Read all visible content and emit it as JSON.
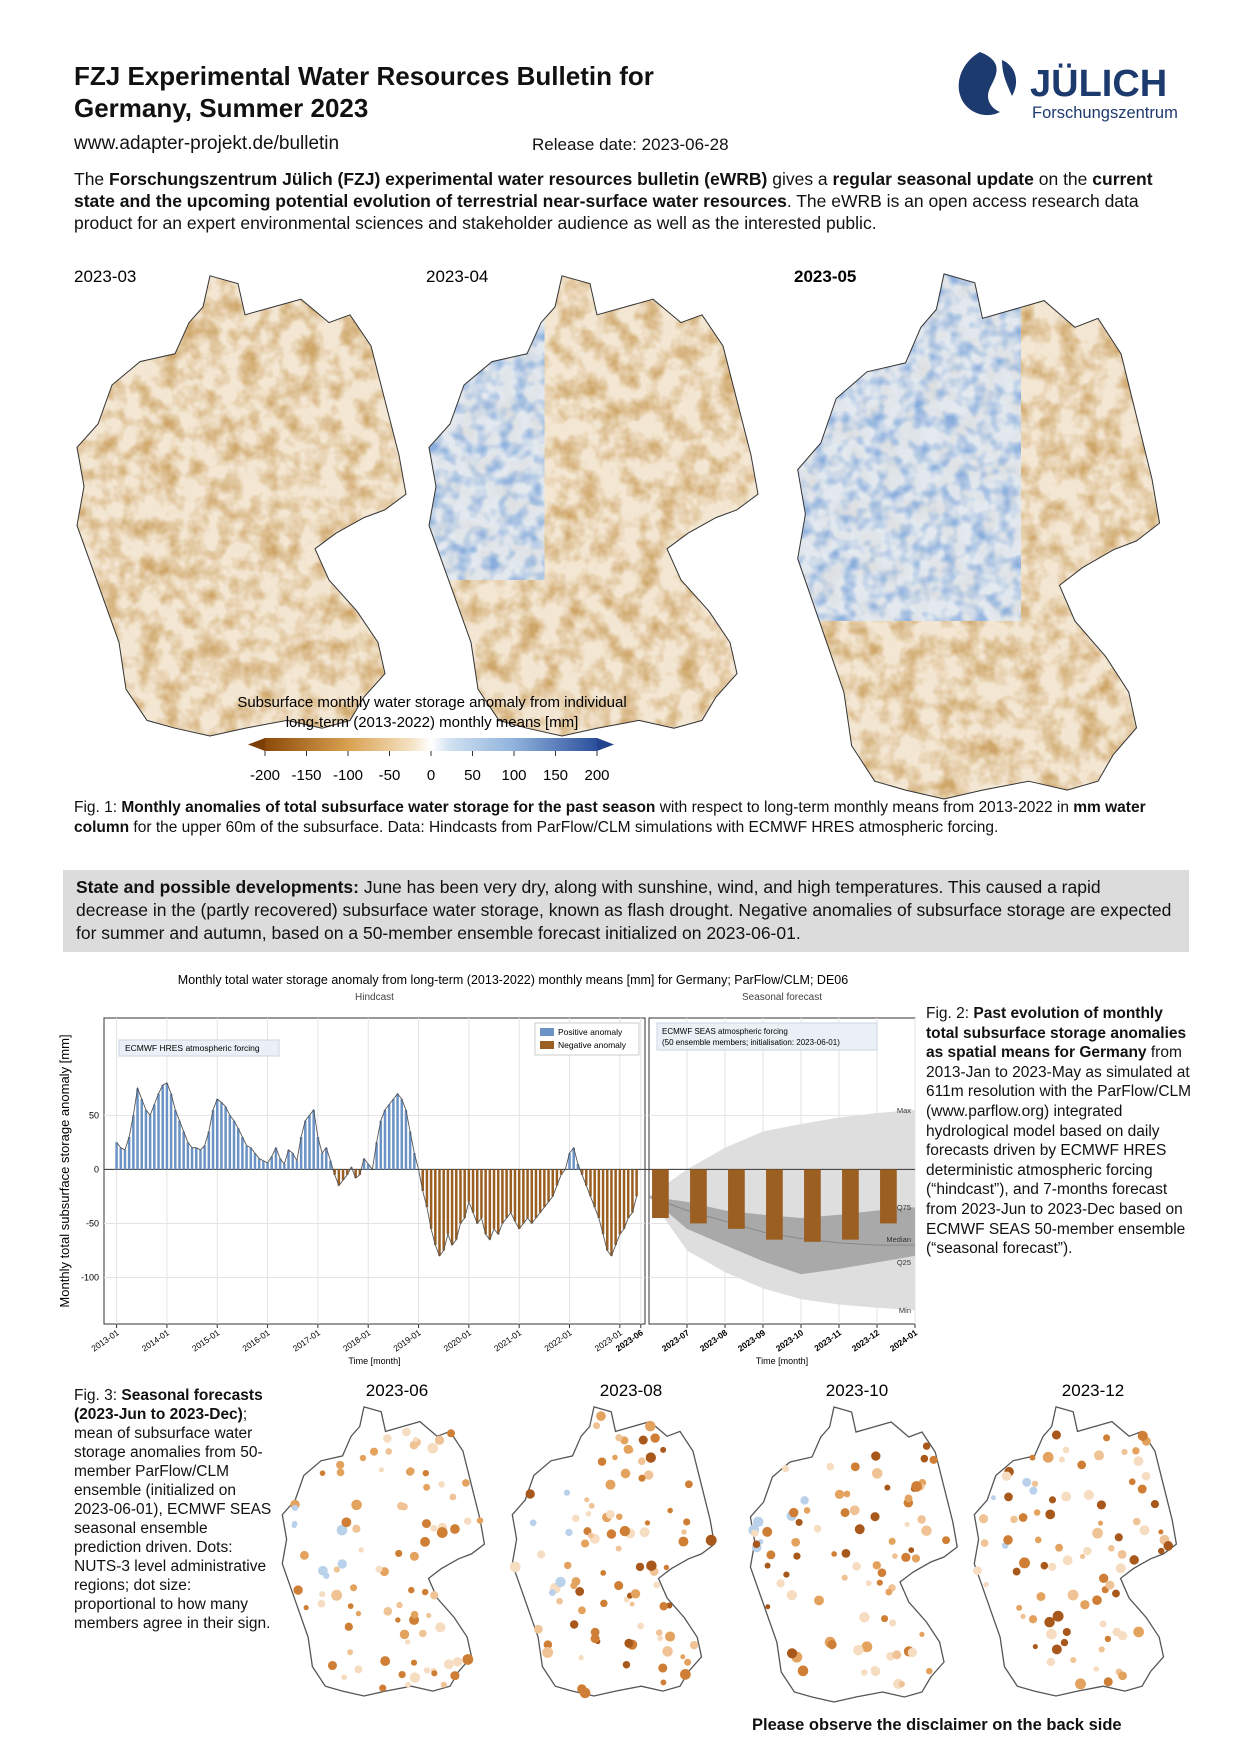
{
  "header": {
    "title_line1": "FZJ Experimental Water Resources Bulletin for",
    "title_line2": "Germany, Summer 2023",
    "url": "www.adapter-projekt.de/bulletin",
    "release": "Release date: 2023-06-28",
    "logo_name": "JÜLICH",
    "logo_sub": "Forschungszentrum"
  },
  "intro": [
    {
      "text": "The ",
      "bold": false
    },
    {
      "text": "Forschungszentrum Jülich (FZJ) experimental water resources bulletin (eWRB)",
      "bold": true
    },
    {
      "text": " gives a ",
      "bold": false
    },
    {
      "text": "regular seasonal update",
      "bold": true
    },
    {
      "text": " on the ",
      "bold": false
    },
    {
      "text": "current state and the upcoming potential evolution of terrestrial near-surface water resources",
      "bold": true
    },
    {
      "text": ". The eWRB is an open access research data product for an expert environmental sciences and stakeholder audience as well as the interested public.",
      "bold": false
    }
  ],
  "figure1": {
    "maps": [
      {
        "label": "2023-03",
        "bold": false
      },
      {
        "label": "2023-04",
        "bold": false
      },
      {
        "label": "2023-05",
        "bold": true
      }
    ],
    "colorbar": {
      "caption_line1": "Subsurface monthly water storage anomaly from individual",
      "caption_line2": "long-term (2013-2022) monthly means [mm]",
      "ticks": [
        -200,
        -150,
        -100,
        -50,
        0,
        50,
        100,
        150,
        200
      ]
    },
    "caption": [
      {
        "text": "Fig. 1: ",
        "bold": false
      },
      {
        "text": "Monthly anomalies of total subsurface water storage for the past season",
        "bold": true
      },
      {
        "text": " with respect to long-term monthly means from 2013-2022 in ",
        "bold": false
      },
      {
        "text": "mm water column",
        "bold": true
      },
      {
        "text": " for the upper 60m of the subsurface. Data: Hindcasts from ParFlow/CLM simulations with ECMWF HRES atmospheric forcing.",
        "bold": false
      }
    ]
  },
  "state": [
    {
      "text": "State and possible developments:",
      "bold": true
    },
    {
      "text": " June has been very dry, along with sunshine, wind, and high temperatures. This caused a rapid decrease in the (partly recovered) subsurface water storage, known as flash drought. Negative anomalies of subsurface storage are expected for summer and autumn, based on a 50-member ensemble forecast initialized on 2023-06-01.",
      "bold": false
    }
  ],
  "chart_data": {
    "type": "bar",
    "title": "Monthly total water storage anomaly from long-term (2013-2022) monthly means [mm] for Germany; ParFlow/CLM; DE06",
    "y_label": "Monthly total subsurface storage anomaly [mm]",
    "ylim": [
      -143,
      140
    ],
    "yticks": [
      50,
      0,
      -50,
      -100
    ],
    "grid": true,
    "legend": [
      {
        "name": "Positive anomaly",
        "color": "#6b93c6"
      },
      {
        "name": "Negative anomaly",
        "color": "#9b5f22"
      }
    ],
    "hindcast": {
      "panel_title": "Hindcast",
      "annotation": "ECMWF HRES atmospheric forcing",
      "x_label": "Time [month]",
      "xlim": [
        "2012-10",
        "2023-07"
      ],
      "xticks": [
        "2013-01",
        "2014-01",
        "2015-01",
        "2016-01",
        "2017-01",
        "2018-01",
        "2019-01",
        "2020-01",
        "2021-01",
        "2022-01",
        "2023-01",
        "2023-06"
      ],
      "x": [
        "2013-01",
        "2013-02",
        "2013-03",
        "2013-04",
        "2013-05",
        "2013-06",
        "2013-07",
        "2013-08",
        "2013-09",
        "2013-10",
        "2013-11",
        "2013-12",
        "2014-01",
        "2014-02",
        "2014-03",
        "2014-04",
        "2014-05",
        "2014-06",
        "2014-07",
        "2014-08",
        "2014-09",
        "2014-10",
        "2014-11",
        "2014-12",
        "2015-01",
        "2015-02",
        "2015-03",
        "2015-04",
        "2015-05",
        "2015-06",
        "2015-07",
        "2015-08",
        "2015-09",
        "2015-10",
        "2015-11",
        "2015-12",
        "2016-01",
        "2016-02",
        "2016-03",
        "2016-04",
        "2016-05",
        "2016-06",
        "2016-07",
        "2016-08",
        "2016-09",
        "2016-10",
        "2016-11",
        "2016-12",
        "2017-01",
        "2017-02",
        "2017-03",
        "2017-04",
        "2017-05",
        "2017-06",
        "2017-07",
        "2017-08",
        "2017-09",
        "2017-10",
        "2017-11",
        "2017-12",
        "2018-01",
        "2018-02",
        "2018-03",
        "2018-04",
        "2018-05",
        "2018-06",
        "2018-07",
        "2018-08",
        "2018-09",
        "2018-10",
        "2018-11",
        "2018-12",
        "2019-01",
        "2019-02",
        "2019-03",
        "2019-04",
        "2019-05",
        "2019-06",
        "2019-07",
        "2019-08",
        "2019-09",
        "2019-10",
        "2019-11",
        "2019-12",
        "2020-01",
        "2020-02",
        "2020-03",
        "2020-04",
        "2020-05",
        "2020-06",
        "2020-07",
        "2020-08",
        "2020-09",
        "2020-10",
        "2020-11",
        "2020-12",
        "2021-01",
        "2021-02",
        "2021-03",
        "2021-04",
        "2021-05",
        "2021-06",
        "2021-07",
        "2021-08",
        "2021-09",
        "2021-10",
        "2021-11",
        "2021-12",
        "2022-01",
        "2022-02",
        "2022-03",
        "2022-04",
        "2022-05",
        "2022-06",
        "2022-07",
        "2022-08",
        "2022-09",
        "2022-10",
        "2022-11",
        "2022-12",
        "2023-01",
        "2023-02",
        "2023-03",
        "2023-04",
        "2023-05"
      ],
      "values": [
        25,
        20,
        18,
        30,
        50,
        75,
        65,
        55,
        50,
        60,
        70,
        78,
        80,
        70,
        55,
        45,
        35,
        25,
        20,
        20,
        18,
        22,
        35,
        55,
        65,
        62,
        58,
        50,
        45,
        38,
        30,
        22,
        20,
        15,
        10,
        8,
        6,
        12,
        20,
        10,
        5,
        18,
        15,
        8,
        30,
        45,
        50,
        55,
        30,
        15,
        20,
        8,
        -5,
        -15,
        -10,
        -5,
        2,
        -8,
        -5,
        10,
        5,
        0,
        25,
        45,
        55,
        60,
        65,
        70,
        65,
        55,
        35,
        15,
        0,
        -20,
        -35,
        -55,
        -70,
        -80,
        -75,
        -60,
        -70,
        -65,
        -50,
        -45,
        -30,
        -40,
        -50,
        -45,
        -60,
        -65,
        -55,
        -60,
        -50,
        -45,
        -40,
        -48,
        -55,
        -50,
        -45,
        -50,
        -45,
        -40,
        -35,
        -30,
        -25,
        -15,
        -5,
        0,
        15,
        20,
        5,
        -5,
        -15,
        -25,
        -35,
        -45,
        -60,
        -75,
        -80,
        -70,
        -60,
        -55,
        -45,
        -40,
        -25
      ]
    },
    "forecast": {
      "panel_title": "Seasonal forecast",
      "annotation_line1": "ECMWF SEAS atmospheric forcing",
      "annotation_line2": "(50 ensemble members; initialisation: 2023-06-01)",
      "x_label": "Time [month]",
      "xlim": [
        "2023-06",
        "2024-01"
      ],
      "xticks": [
        "2023-07",
        "2023-08",
        "2023-09",
        "2023-10",
        "2023-11",
        "2023-12",
        "2024-01"
      ],
      "x": [
        "2023-06",
        "2023-07",
        "2023-08",
        "2023-09",
        "2023-10",
        "2023-11",
        "2023-12"
      ],
      "values": [
        -45,
        -50,
        -55,
        -65,
        -67,
        -65,
        -50
      ],
      "envelope_x": [
        "2023-06",
        "2023-07",
        "2023-08",
        "2023-09",
        "2023-10",
        "2023-11",
        "2023-12",
        "2024-01"
      ],
      "envelope": [
        {
          "name": "Max",
          "values": [
            -25,
            0,
            20,
            35,
            42,
            48,
            52,
            55
          ]
        },
        {
          "name": "Q75",
          "values": [
            -25,
            -30,
            -38,
            -42,
            -45,
            -42,
            -38,
            -35
          ]
        },
        {
          "name": "Median",
          "values": [
            -25,
            -38,
            -48,
            -58,
            -64,
            -68,
            -70,
            -70
          ]
        },
        {
          "name": "Q25",
          "values": [
            -25,
            -55,
            -70,
            -85,
            -97,
            -92,
            -86,
            -80
          ]
        },
        {
          "name": "Min",
          "values": [
            -25,
            -75,
            -95,
            -110,
            -120,
            -125,
            -128,
            -130
          ]
        }
      ]
    }
  },
  "figure2_caption": [
    {
      "text": "Fig. 2: ",
      "bold": false
    },
    {
      "text": "Past evolution of monthly total subsurface storage anomalies as spatial means for Germany",
      "bold": true
    },
    {
      "text": " from 2013-Jan to 2023-May as simulated at 611m resolution with the ParFlow/CLM (www.parflow.org) integrated hydrological model based on daily forecasts driven by ECMWF HRES deterministic atmospheric forcing (“hindcast”), and 7-months forecast from 2023-Jun to 2023-Dec based on ECMWF SEAS 50-member ensemble (“seasonal forecast”).",
      "bold": false
    }
  ],
  "figure3": {
    "maps": [
      "2023-06",
      "2023-08",
      "2023-10",
      "2023-12"
    ],
    "caption": [
      {
        "text": "Fig. 3: ",
        "bold": false
      },
      {
        "text": "Seasonal forecasts (2023-Jun to 2023-Dec)",
        "bold": true
      },
      {
        "text": "; mean of subsurface water storage anomalies from 50-member ParFlow/CLM ensemble (initialized on 2023-06-01), ECMWF SEAS seasonal ensemble prediction driven. Dots: NUTS-3 level administrative regions; dot size: proportional to how many members agree in their sign.",
        "bold": false
      }
    ]
  },
  "disclaimer": "Please observe the disclaimer on the back side"
}
